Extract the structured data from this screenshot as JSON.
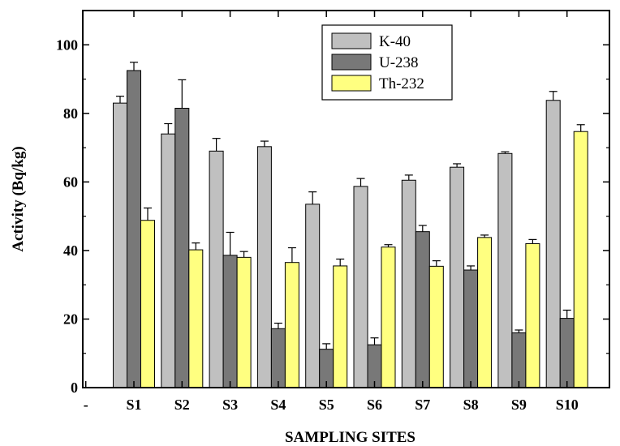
{
  "chart_data": {
    "type": "bar",
    "title": "",
    "xlabel": "SAMPLING SITES",
    "ylabel": "Activity (Bq/kg)",
    "ylim": [
      0,
      110
    ],
    "yticks": [
      0,
      20,
      40,
      60,
      80,
      100
    ],
    "x_extra_tick_label": "-",
    "categories": [
      "S1",
      "S2",
      "S3",
      "S4",
      "S5",
      "S6",
      "S7",
      "S8",
      "S9",
      "S10"
    ],
    "legend_position": "top-center",
    "grid": false,
    "series": [
      {
        "name": "K-40",
        "color": "#c0c0c0",
        "values": [
          83,
          74,
          69,
          70.3,
          53.5,
          58.7,
          60.5,
          64.3,
          68.3,
          83.8
        ],
        "errors": [
          2,
          3,
          3.7,
          1.6,
          3.6,
          2.3,
          1.5,
          1,
          0.5,
          2.6
        ]
      },
      {
        "name": "U-238",
        "color": "#787878",
        "values": [
          92.5,
          81.5,
          38.6,
          17.2,
          11.2,
          12.5,
          45.5,
          34.3,
          16,
          20.2
        ],
        "errors": [
          2.4,
          8.3,
          6.7,
          1.6,
          1.6,
          2,
          1.8,
          1.2,
          0.8,
          2.4
        ]
      },
      {
        "name": "Th-232",
        "color": "#ffff80",
        "values": [
          48.8,
          40.2,
          38,
          36.5,
          35.5,
          41,
          35.4,
          43.8,
          42,
          74.7
        ],
        "errors": [
          3.6,
          2,
          1.7,
          4.3,
          2,
          0.7,
          1.6,
          0.7,
          1.2,
          2
        ]
      }
    ]
  }
}
